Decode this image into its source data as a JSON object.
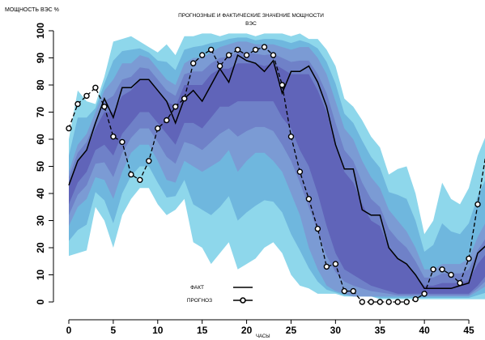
{
  "chart_data": {
    "type": "line",
    "title": "ПРОГНОЗНЫЕ И ФАКТИЧЕСКИЕ ЗНАЧЕНИЕ МОЩНОСТИ ВЭС",
    "title_line1": "ПРОГНОЗНЫЕ И ФАКТИЧЕСКИЕ ЗНАЧЕНИЕ МОЩНОСТИ",
    "title_line2": "ВЭС",
    "ylabel": "МОЩНОСТЬ ВЭС %",
    "xlabel": "ЧАСЫ",
    "xlim": [
      0,
      47
    ],
    "ylim": [
      0,
      100
    ],
    "xticks": [
      0,
      5,
      10,
      15,
      20,
      25,
      30,
      35,
      40,
      45
    ],
    "yticks": [
      0,
      10,
      20,
      30,
      40,
      50,
      60,
      70,
      80,
      90,
      100
    ],
    "legend_position": "bottom-center",
    "grid": false,
    "series": [
      {
        "name": "ФАКТ",
        "style": "line",
        "color": "#000000",
        "x": [
          0,
          1,
          2,
          3,
          4,
          5,
          6,
          7,
          8,
          9,
          10,
          11,
          12,
          13,
          14,
          15,
          16,
          17,
          18,
          19,
          20,
          21,
          22,
          23,
          24,
          25,
          26,
          27,
          28,
          29,
          30,
          31,
          32,
          33,
          34,
          35,
          36,
          37,
          38,
          39,
          40,
          41,
          42,
          43,
          44,
          45,
          46,
          47
        ],
        "values": [
          43,
          52,
          56,
          66,
          75,
          68,
          79,
          79,
          82,
          82,
          78,
          74,
          66,
          75,
          78,
          74,
          80,
          86,
          81,
          91,
          89,
          88,
          85,
          89,
          77,
          85,
          85,
          87,
          81,
          72,
          58,
          49,
          49,
          34,
          32,
          32,
          20,
          16,
          14,
          10,
          5,
          5,
          5,
          5,
          6,
          7,
          18,
          21
        ]
      },
      {
        "name": "ПРОГНОЗ",
        "style": "line-circles",
        "color": "#000000",
        "x": [
          0,
          1,
          2,
          3,
          4,
          5,
          6,
          7,
          8,
          9,
          10,
          11,
          12,
          13,
          14,
          15,
          16,
          17,
          18,
          19,
          20,
          21,
          22,
          23,
          24,
          25,
          26,
          27,
          28,
          29,
          30,
          31,
          32,
          33,
          34,
          35,
          36,
          37,
          38,
          39,
          40,
          41,
          42,
          43,
          44,
          45,
          46,
          47
        ],
        "values": [
          64,
          73,
          76,
          79,
          72,
          61,
          59,
          47,
          45,
          52,
          64,
          67,
          72,
          75,
          88,
          91,
          93,
          87,
          91,
          93,
          91,
          93,
          94,
          91,
          80,
          61,
          48,
          38,
          27,
          13,
          14,
          4,
          4,
          0,
          0,
          0,
          0,
          0,
          0,
          1,
          3,
          12,
          12,
          10,
          7,
          16,
          36,
          56
        ]
      }
    ],
    "band": {
      "description": "uncertainty quantile bands",
      "colors": [
        "#7ad0e8",
        "#6ab2dc",
        "#7e97d2",
        "#6d7cc6",
        "#5e5fb6"
      ],
      "outer_low": [
        17,
        18,
        19,
        35,
        30,
        20,
        32,
        38,
        42,
        42,
        36,
        32,
        34,
        38,
        22,
        20,
        14,
        18,
        22,
        12,
        14,
        16,
        20,
        22,
        18,
        10,
        6,
        5,
        3,
        3,
        3,
        2,
        2,
        2,
        2,
        1,
        1,
        1,
        1,
        1,
        1,
        1,
        1,
        1,
        1,
        1,
        1,
        1
      ],
      "outer_high": [
        60,
        78,
        74,
        73,
        83,
        96,
        97,
        98,
        96,
        94,
        92,
        95,
        91,
        98,
        98,
        99,
        99,
        98,
        99,
        99,
        99,
        98,
        99,
        99,
        99,
        98,
        99,
        97,
        97,
        93,
        87,
        75,
        72,
        67,
        61,
        57,
        47,
        49,
        50,
        40,
        25,
        30,
        44,
        38,
        36,
        42,
        54,
        62
      ],
      "mid_low": [
        28,
        35,
        38,
        46,
        45,
        38,
        48,
        55,
        58,
        58,
        52,
        45,
        44,
        52,
        50,
        48,
        50,
        52,
        56,
        48,
        52,
        55,
        55,
        52,
        48,
        40,
        32,
        20,
        12,
        6,
        4,
        3,
        2,
        2,
        2,
        2,
        2,
        2,
        2,
        2,
        2,
        2,
        2,
        2,
        2,
        2,
        4,
        6
      ],
      "mid_high": [
        48,
        58,
        62,
        70,
        78,
        82,
        88,
        88,
        91,
        90,
        86,
        82,
        80,
        88,
        90,
        90,
        92,
        94,
        95,
        96,
        96,
        95,
        95,
        95,
        94,
        93,
        94,
        94,
        90,
        84,
        74,
        64,
        60,
        52,
        46,
        42,
        34,
        30,
        26,
        20,
        12,
        12,
        14,
        14,
        14,
        16,
        24,
        30
      ],
      "core_low": [
        36,
        44,
        48,
        56,
        58,
        54,
        62,
        66,
        70,
        70,
        66,
        62,
        58,
        66,
        66,
        64,
        68,
        72,
        72,
        74,
        74,
        74,
        74,
        74,
        68,
        64,
        56,
        50,
        40,
        28,
        18,
        12,
        10,
        8,
        6,
        5,
        4,
        3,
        3,
        3,
        3,
        3,
        3,
        3,
        3,
        3,
        6,
        10
      ],
      "core_high": [
        44,
        52,
        56,
        64,
        70,
        70,
        76,
        78,
        82,
        82,
        78,
        74,
        72,
        80,
        80,
        80,
        84,
        86,
        86,
        88,
        88,
        88,
        87,
        88,
        86,
        84,
        84,
        84,
        78,
        70,
        58,
        48,
        44,
        36,
        30,
        28,
        20,
        16,
        14,
        10,
        6,
        6,
        7,
        7,
        7,
        8,
        14,
        18
      ]
    }
  }
}
